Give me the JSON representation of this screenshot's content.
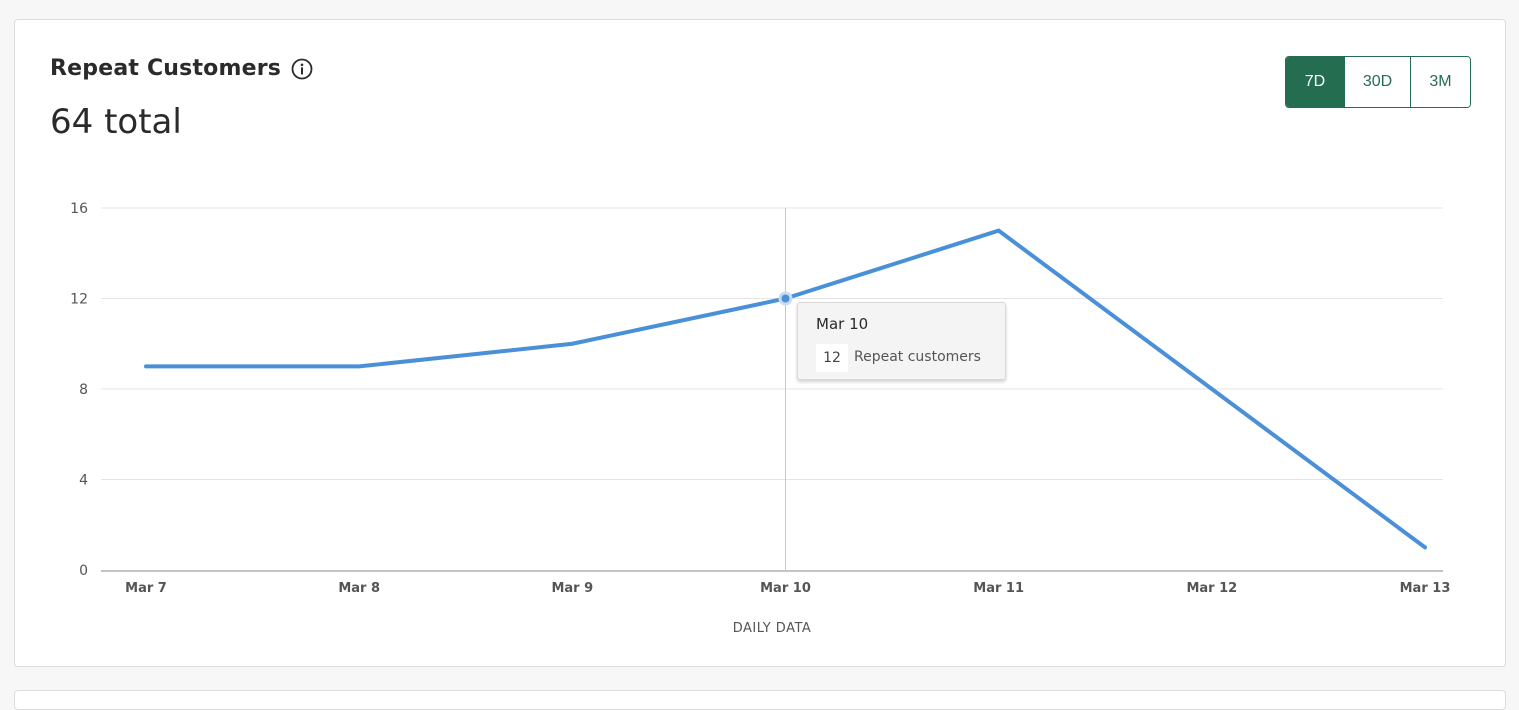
{
  "header": {
    "title": "Repeat Customers",
    "info_icon": "info-circle-icon",
    "total": "64 total"
  },
  "range_selector": {
    "options": [
      "7D",
      "30D",
      "3M"
    ],
    "selected": "7D",
    "accent_color": "#256d50"
  },
  "tooltip": {
    "date": "Mar 10",
    "value": "12",
    "label": "Repeat customers"
  },
  "chart_data": {
    "type": "line",
    "categories": [
      "Mar 7",
      "Mar 8",
      "Mar 9",
      "Mar 10",
      "Mar 11",
      "Mar 12",
      "Mar 13"
    ],
    "series": [
      {
        "name": "Repeat customers",
        "values": [
          9,
          9,
          10,
          12,
          15,
          8,
          1
        ],
        "color": "#4a90d9"
      }
    ],
    "xlabel": "DAILY DATA",
    "ylabel": "",
    "ylim": [
      0,
      16
    ],
    "yticks": [
      0,
      4,
      8,
      12,
      16
    ],
    "grid": true,
    "highlighted_category": "Mar 10"
  }
}
